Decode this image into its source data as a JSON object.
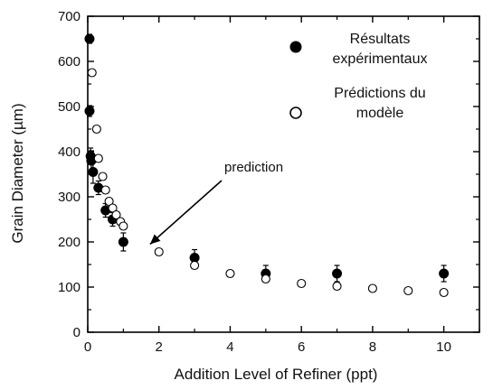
{
  "chart_data": {
    "type": "scatter",
    "title": "",
    "xlabel": "Addition Level of Refiner  (ppt)",
    "ylabel": "Grain Diameter  (µm)",
    "xlim": [
      0,
      11
    ],
    "ylim": [
      0,
      700
    ],
    "xticks": [
      "0",
      "2",
      "4",
      "6",
      "8",
      "10"
    ],
    "yticks": [
      "0",
      "100",
      "200",
      "300",
      "400",
      "500",
      "600",
      "700"
    ],
    "legend_position": "top-right",
    "series": [
      {
        "name": "Résultats expérimentaux",
        "legend_lines": [
          "Résultats",
          "expérimentaux"
        ],
        "marker": "filled-circle",
        "color": "#000000",
        "points": [
          {
            "x": 0.05,
            "y": 650,
            "err": 10
          },
          {
            "x": 0.05,
            "y": 490,
            "err": 12
          },
          {
            "x": 0.08,
            "y": 390,
            "err": 18
          },
          {
            "x": 0.1,
            "y": 380,
            "err": 22
          },
          {
            "x": 0.15,
            "y": 355,
            "err": 25
          },
          {
            "x": 0.3,
            "y": 320,
            "err": 15
          },
          {
            "x": 0.5,
            "y": 270,
            "err": 15
          },
          {
            "x": 0.7,
            "y": 250,
            "err": 15
          },
          {
            "x": 1.0,
            "y": 200,
            "err": 20
          },
          {
            "x": 3.0,
            "y": 165,
            "err": 18
          },
          {
            "x": 5.0,
            "y": 130,
            "err": 18
          },
          {
            "x": 7.0,
            "y": 130,
            "err": 18
          },
          {
            "x": 10.0,
            "y": 130,
            "err": 18
          }
        ]
      },
      {
        "name": "Prédictions du modèle",
        "legend_lines": [
          "Prédictions du",
          "modèle"
        ],
        "marker": "open-circle",
        "color": "#000000",
        "points": [
          {
            "x": 0.12,
            "y": 575
          },
          {
            "x": 0.25,
            "y": 450
          },
          {
            "x": 0.3,
            "y": 385
          },
          {
            "x": 0.42,
            "y": 345
          },
          {
            "x": 0.5,
            "y": 315
          },
          {
            "x": 0.6,
            "y": 290
          },
          {
            "x": 0.7,
            "y": 275
          },
          {
            "x": 0.8,
            "y": 260
          },
          {
            "x": 0.92,
            "y": 245
          },
          {
            "x": 1.0,
            "y": 235
          },
          {
            "x": 2.0,
            "y": 178
          },
          {
            "x": 3.0,
            "y": 148
          },
          {
            "x": 4.0,
            "y": 130
          },
          {
            "x": 5.0,
            "y": 118
          },
          {
            "x": 6.0,
            "y": 108
          },
          {
            "x": 7.0,
            "y": 102
          },
          {
            "x": 8.0,
            "y": 97
          },
          {
            "x": 9.0,
            "y": 92
          },
          {
            "x": 10.0,
            "y": 88
          }
        ]
      }
    ],
    "annotations": [
      {
        "text": "prediction",
        "arrow_to": {
          "x": 1.75,
          "y": 195
        }
      }
    ]
  }
}
